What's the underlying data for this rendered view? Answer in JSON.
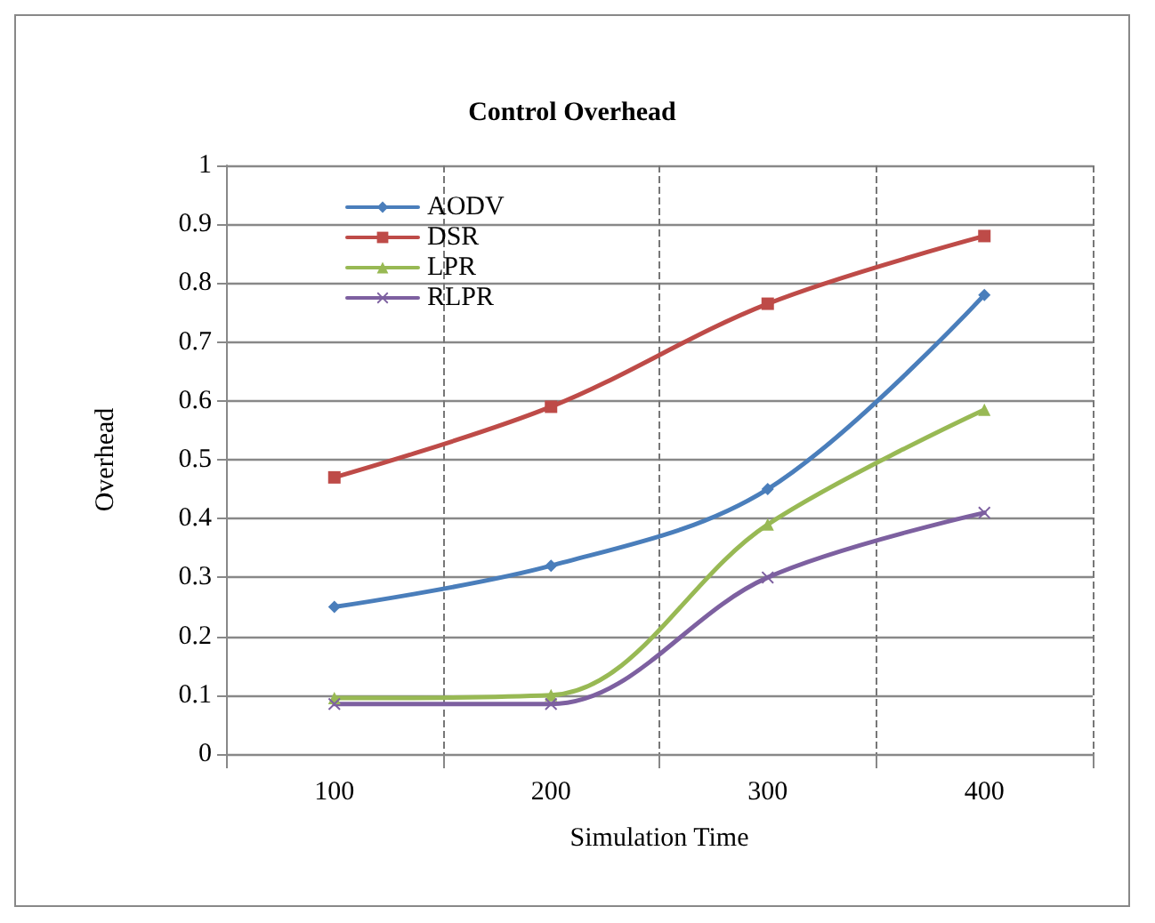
{
  "chart_data": {
    "type": "line",
    "title": "Control Overhead",
    "xlabel": "Simulation Time",
    "ylabel": "Overhead",
    "categories": [
      "100",
      "200",
      "300",
      "400"
    ],
    "series": [
      {
        "name": "AODV",
        "color": "#4a7ebb",
        "marker": "diamond",
        "values": [
          0.25,
          0.32,
          0.45,
          0.78
        ]
      },
      {
        "name": "DSR",
        "color": "#be4b48",
        "marker": "square",
        "values": [
          0.47,
          0.59,
          0.765,
          0.88
        ]
      },
      {
        "name": "LPR",
        "color": "#98b954",
        "marker": "triangle",
        "values": [
          0.095,
          0.1,
          0.39,
          0.585
        ]
      },
      {
        "name": "RLPR",
        "color": "#7d60a0",
        "marker": "cross",
        "values": [
          0.085,
          0.085,
          0.3,
          0.41
        ]
      }
    ],
    "ylim": [
      0,
      1
    ],
    "yticks": [
      0,
      0.1,
      0.2,
      0.3,
      0.4,
      0.5,
      0.6,
      0.7,
      0.8,
      0.9,
      1
    ],
    "grid": true,
    "legend": "top left",
    "line_style": "solid"
  }
}
